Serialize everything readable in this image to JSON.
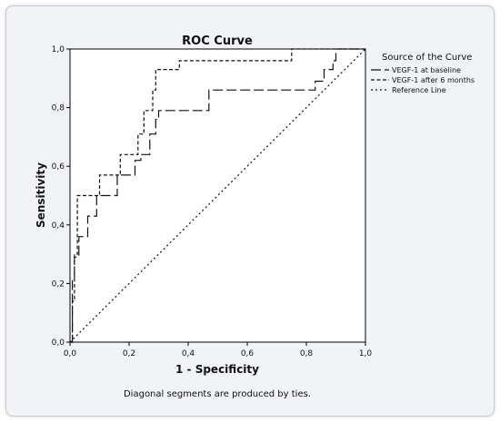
{
  "chart_data": {
    "type": "line",
    "title": "ROC Curve",
    "xlabel": "1 - Specificity",
    "ylabel": "Sensitivity",
    "xlim": [
      0,
      1
    ],
    "ylim": [
      0,
      1
    ],
    "xticks": [
      "0,0",
      "0,2",
      "0,4",
      "0,6",
      "0,8",
      "1,0"
    ],
    "yticks": [
      "0,0",
      "0,2",
      "0,4",
      "0,6",
      "0,8",
      "1,0"
    ],
    "grid": false,
    "legend_title": "Source of the Curve",
    "legend_position": "right",
    "footnote": "Diagonal segments are produced by ties.",
    "series": [
      {
        "name": "VEGF-1 at baseline",
        "style": "long-dash",
        "x": [
          0,
          0.008,
          0.008,
          0.015,
          0.015,
          0.03,
          0.03,
          0.06,
          0.06,
          0.09,
          0.09,
          0.16,
          0.16,
          0.22,
          0.22,
          0.24,
          0.24,
          0.27,
          0.27,
          0.29,
          0.29,
          0.3,
          0.3,
          0.47,
          0.47,
          0.83,
          0.83,
          0.86,
          0.86,
          0.89,
          0.89,
          0.9,
          0.9,
          1.0
        ],
        "y": [
          0,
          0,
          0.21,
          0.21,
          0.29,
          0.29,
          0.36,
          0.36,
          0.43,
          0.43,
          0.5,
          0.5,
          0.57,
          0.57,
          0.62,
          0.62,
          0.64,
          0.64,
          0.71,
          0.71,
          0.76,
          0.76,
          0.79,
          0.79,
          0.86,
          0.86,
          0.89,
          0.89,
          0.93,
          0.93,
          0.96,
          0.96,
          1.0,
          1.0
        ]
      },
      {
        "name": "VEGF-1 after 6 months",
        "style": "short-dash",
        "x": [
          0,
          0.008,
          0.008,
          0.015,
          0.015,
          0.025,
          0.025,
          0.1,
          0.1,
          0.17,
          0.17,
          0.23,
          0.23,
          0.25,
          0.25,
          0.28,
          0.28,
          0.29,
          0.29,
          0.37,
          0.37,
          0.75,
          0.75,
          1.0
        ],
        "y": [
          0,
          0,
          0.14,
          0.14,
          0.3,
          0.3,
          0.5,
          0.5,
          0.57,
          0.57,
          0.64,
          0.64,
          0.71,
          0.71,
          0.79,
          0.79,
          0.86,
          0.86,
          0.93,
          0.93,
          0.96,
          0.96,
          1.0,
          1.0
        ]
      },
      {
        "name": "Reference Line",
        "style": "dotted",
        "x": [
          0,
          1
        ],
        "y": [
          0,
          1
        ]
      }
    ]
  }
}
